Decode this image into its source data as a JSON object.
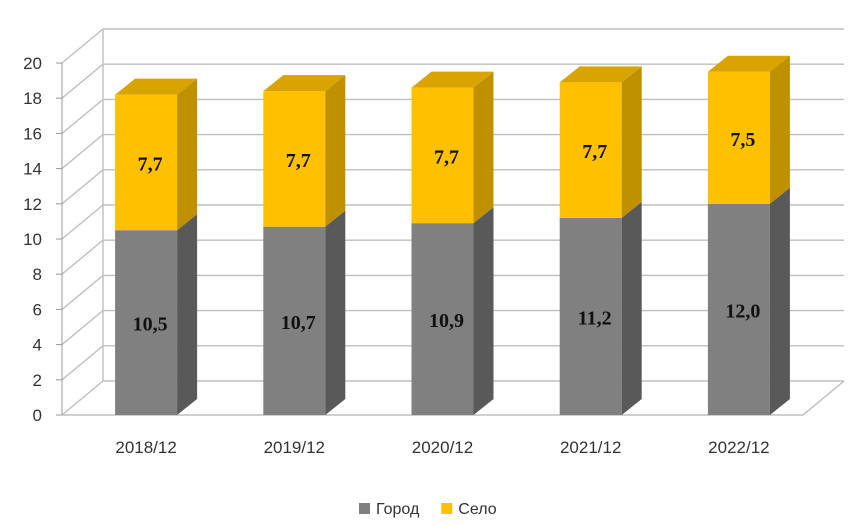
{
  "chart_data": {
    "type": "bar",
    "stacked": true,
    "three_d": true,
    "categories": [
      "2018/12",
      "2019/12",
      "2020/12",
      "2021/12",
      "2022/12"
    ],
    "series": [
      {
        "name": "Город",
        "values": [
          10.5,
          10.7,
          10.9,
          11.2,
          12.0
        ],
        "labels": [
          "10,5",
          "10,7",
          "10,9",
          "11,2",
          "12,0"
        ]
      },
      {
        "name": "Село",
        "values": [
          7.7,
          7.7,
          7.7,
          7.7,
          7.5
        ],
        "labels": [
          "7,7",
          "7,7",
          "7,7",
          "7,7",
          "7,5"
        ]
      }
    ],
    "ylim": [
      0,
      20
    ],
    "yticks": [
      "0",
      "2",
      "4",
      "6",
      "8",
      "10",
      "12",
      "14",
      "16",
      "18",
      "20"
    ],
    "grid": true,
    "legend": "bottom",
    "colors": {
      "Город": {
        "front": "#808080",
        "side": "#595959",
        "top": "#6f6f6f"
      },
      "Село": {
        "front": "#ffc000",
        "side": "#bf9000",
        "top": "#d9a300"
      },
      "grid": "#bfbfbf"
    }
  }
}
